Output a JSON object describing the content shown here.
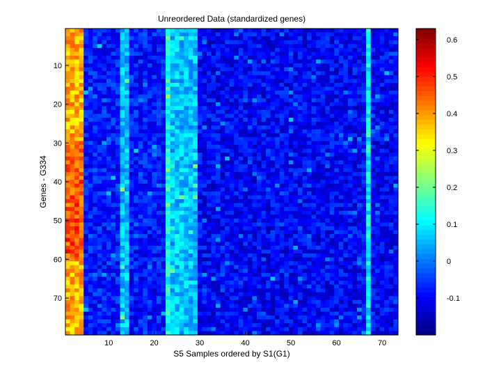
{
  "chart_data": {
    "type": "heatmap",
    "title": "Unreordered Data (standardized genes)",
    "xlabel": "S5 Samples ordered by S1(G1)",
    "ylabel": "Genes - G334",
    "xlim": [
      0.5,
      73.5
    ],
    "ylim": [
      0.5,
      79.5
    ],
    "y_direction": "reversed",
    "n_cols": 73,
    "n_rows": 79,
    "x_ticks": [
      10,
      20,
      30,
      40,
      50,
      60,
      70
    ],
    "y_ticks": [
      10,
      20,
      30,
      40,
      50,
      60,
      70
    ],
    "colormap": "jet",
    "colorbar": {
      "range": [
        -0.2,
        0.63
      ],
      "ticks": [
        -0.1,
        0,
        0.1,
        0.2,
        0.3,
        0.4,
        0.5,
        0.6
      ],
      "tick_labels": [
        "-0.1",
        "0",
        "0.1",
        "0.2",
        "0.3",
        "0.4",
        "0.5",
        "0.6"
      ]
    },
    "column_profile": [
      {
        "columns": [
          1,
          4
        ],
        "typical_value": 0.38,
        "note": "high band; up to ~0.5 in rows 30-60"
      },
      {
        "columns": [
          5,
          12
        ],
        "typical_value": -0.08
      },
      {
        "columns": [
          13,
          14
        ],
        "typical_value": 0.06
      },
      {
        "columns": [
          15,
          22
        ],
        "typical_value": -0.08
      },
      {
        "columns": [
          23,
          23
        ],
        "typical_value": 0.13
      },
      {
        "columns": [
          24,
          29
        ],
        "typical_value": 0.06
      },
      {
        "columns": [
          30,
          66
        ],
        "typical_value": -0.1
      },
      {
        "columns": [
          67,
          67
        ],
        "typical_value": 0.1
      },
      {
        "columns": [
          68,
          73
        ],
        "typical_value": -0.1
      }
    ]
  }
}
